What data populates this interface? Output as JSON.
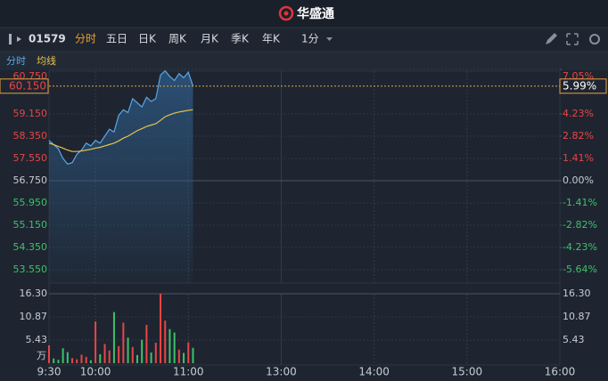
{
  "header": {
    "logo": "华盛通"
  },
  "toolbar": {
    "symbol": "01579",
    "periods": [
      "分时",
      "五日",
      "日K",
      "周K",
      "月K",
      "季K",
      "年K"
    ],
    "minute": "1分"
  },
  "last_price": {
    "value": 60.15,
    "label": "60.150"
  },
  "last_change": {
    "value": 5.99,
    "label": "5.99%"
  },
  "chart_data": [
    {
      "type": "line",
      "x": [
        "9:30",
        "9:33",
        "9:36",
        "9:39",
        "9:42",
        "9:45",
        "9:48",
        "9:51",
        "9:54",
        "9:57",
        "10:00",
        "10:03",
        "10:06",
        "10:09",
        "10:12",
        "10:15",
        "10:18",
        "10:21",
        "10:24",
        "10:27",
        "10:30",
        "10:33",
        "10:36",
        "10:39",
        "10:42",
        "10:45",
        "10:48",
        "10:51",
        "10:54",
        "10:57",
        "11:00",
        "11:03"
      ],
      "series": [
        {
          "name": "分时",
          "color": "#5aa5e6",
          "values": [
            58.2,
            58.05,
            57.9,
            57.55,
            57.35,
            57.4,
            57.7,
            57.85,
            58.1,
            58.0,
            58.2,
            58.1,
            58.35,
            58.6,
            58.5,
            59.1,
            59.3,
            59.2,
            59.7,
            59.55,
            59.4,
            59.75,
            59.6,
            59.7,
            60.55,
            60.7,
            60.5,
            60.35,
            60.6,
            60.45,
            60.65,
            60.15
          ]
        },
        {
          "name": "均线",
          "color": "#e8c34a",
          "values": [
            58.1,
            58.05,
            57.98,
            57.92,
            57.85,
            57.8,
            57.8,
            57.82,
            57.85,
            57.88,
            57.92,
            57.95,
            58.0,
            58.05,
            58.1,
            58.18,
            58.28,
            58.35,
            58.45,
            58.55,
            58.62,
            58.7,
            58.75,
            58.8,
            58.92,
            59.05,
            59.12,
            59.18,
            59.22,
            59.25,
            59.28,
            59.3
          ]
        }
      ],
      "ylim": [
        52.75,
        60.75
      ],
      "yticks": [
        {
          "value": 60.75,
          "label": "60.750"
        },
        {
          "value": 59.15,
          "label": "59.150"
        },
        {
          "value": 58.35,
          "label": "58.350"
        },
        {
          "value": 57.55,
          "label": "57.550"
        },
        {
          "value": 56.75,
          "label": "56.750"
        },
        {
          "value": 55.95,
          "label": "55.950"
        },
        {
          "value": 55.15,
          "label": "55.150"
        },
        {
          "value": 54.35,
          "label": "54.350"
        },
        {
          "value": 53.55,
          "label": "53.550"
        }
      ],
      "y2lim": [
        -7.05,
        7.05
      ],
      "y2ticks": [
        {
          "value": 7.05,
          "label": "7.05%"
        },
        {
          "value": 4.23,
          "label": "4.23%"
        },
        {
          "value": 2.82,
          "label": "2.82%"
        },
        {
          "value": 1.41,
          "label": "1.41%"
        },
        {
          "value": 0,
          "label": "0.00%"
        },
        {
          "value": -1.41,
          "label": "-1.41%"
        },
        {
          "value": -2.82,
          "label": "-2.82%"
        },
        {
          "value": -4.23,
          "label": "-4.23%"
        },
        {
          "value": -5.64,
          "label": "-5.64%"
        }
      ],
      "xlim": [
        "9:30",
        "16:00"
      ],
      "xticks": [
        "9:30",
        "10:00",
        "11:00",
        "13:00",
        "14:00",
        "15:00",
        "16:00"
      ]
    },
    {
      "type": "bar",
      "x": [
        "9:30",
        "9:33",
        "9:36",
        "9:39",
        "9:42",
        "9:45",
        "9:48",
        "9:51",
        "9:54",
        "9:57",
        "10:00",
        "10:03",
        "10:06",
        "10:09",
        "10:12",
        "10:15",
        "10:18",
        "10:21",
        "10:24",
        "10:27",
        "10:30",
        "10:33",
        "10:36",
        "10:39",
        "10:42",
        "10:45",
        "10:48",
        "10:51",
        "10:54",
        "10:57",
        "11:00",
        "11:03"
      ],
      "values": [
        4.2,
        1.1,
        0.8,
        3.5,
        2.6,
        1.2,
        0.9,
        2.0,
        1.5,
        0.7,
        9.8,
        2.1,
        4.5,
        3.0,
        12.0,
        4.0,
        9.5,
        6.0,
        3.8,
        1.9,
        5.5,
        9.0,
        2.5,
        4.8,
        16.3,
        10.0,
        8.0,
        7.2,
        3.2,
        2.4,
        4.9,
        3.6
      ],
      "unit": "万",
      "ylim": [
        0,
        16.3
      ],
      "yticks": [
        {
          "value": 16.3,
          "label": "16.30"
        },
        {
          "value": 10.87,
          "label": "10.87"
        },
        {
          "value": 5.43,
          "label": "5.43"
        }
      ]
    }
  ]
}
